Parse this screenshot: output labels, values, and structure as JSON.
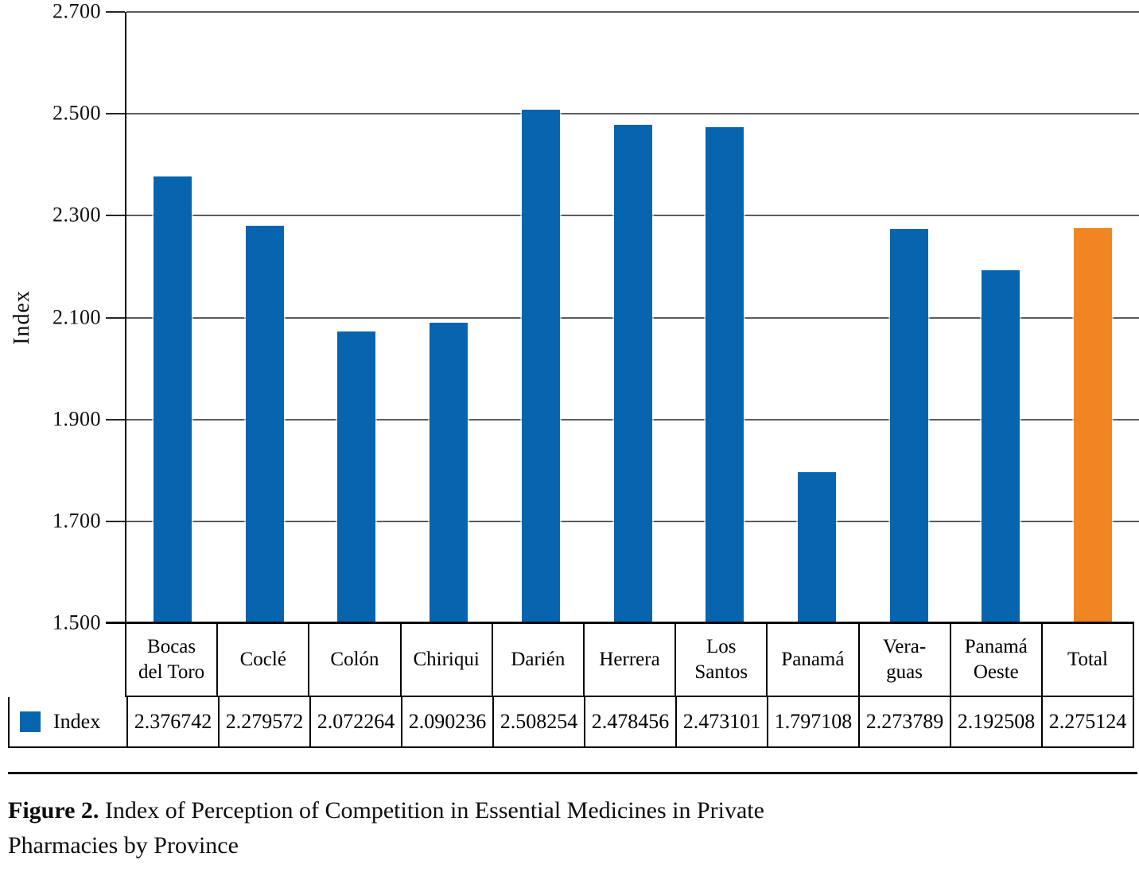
{
  "figure": {
    "caption_prefix": "Figure 2.",
    "caption_line1": " Index of Perception of Competition in Essential Medicines in Private",
    "caption_line2": "Pharmacies by Province"
  },
  "legend": {
    "label": "Index",
    "swatch_color": "#0765AF"
  },
  "table": {
    "headers": [
      "Bocas\ndel Toro",
      "Coclé",
      "Colón",
      "Chiriqui",
      "Darién",
      "Herrera",
      "Los\nSantos",
      "Panamá",
      "Vera-\nguas",
      "Panamá\nOeste",
      "Total"
    ],
    "values": [
      "2.376742",
      "2.279572",
      "2.072264",
      "2.090236",
      "2.508254",
      "2.478456",
      "2.473101",
      "1.797108",
      "2.273789",
      "2.192508",
      "2.275124"
    ]
  },
  "chart_data": {
    "type": "bar",
    "title": "",
    "xlabel": "",
    "ylabel": "Index",
    "categories": [
      "Bocas del Toro",
      "Coclé",
      "Colón",
      "Chiriqui",
      "Darién",
      "Herrera",
      "Los Santos",
      "Panamá",
      "Veraguas",
      "Panamá Oeste",
      "Total"
    ],
    "series": [
      {
        "name": "Index",
        "values": [
          2.376742,
          2.279572,
          2.072264,
          2.090236,
          2.508254,
          2.478456,
          2.473101,
          1.797108,
          2.273789,
          2.192508,
          2.275124
        ]
      }
    ],
    "ylim": [
      1.5,
      2.7
    ],
    "ytick_labels": [
      "2.700",
      "2.500",
      "2.300",
      "2.100",
      "1.900",
      "1.700",
      "1.500"
    ],
    "grid": true,
    "legend_position": "table-left-cell",
    "bar_color": "#0765AF",
    "total_bar_color": "#F18522",
    "highlight_last_bar": true
  }
}
